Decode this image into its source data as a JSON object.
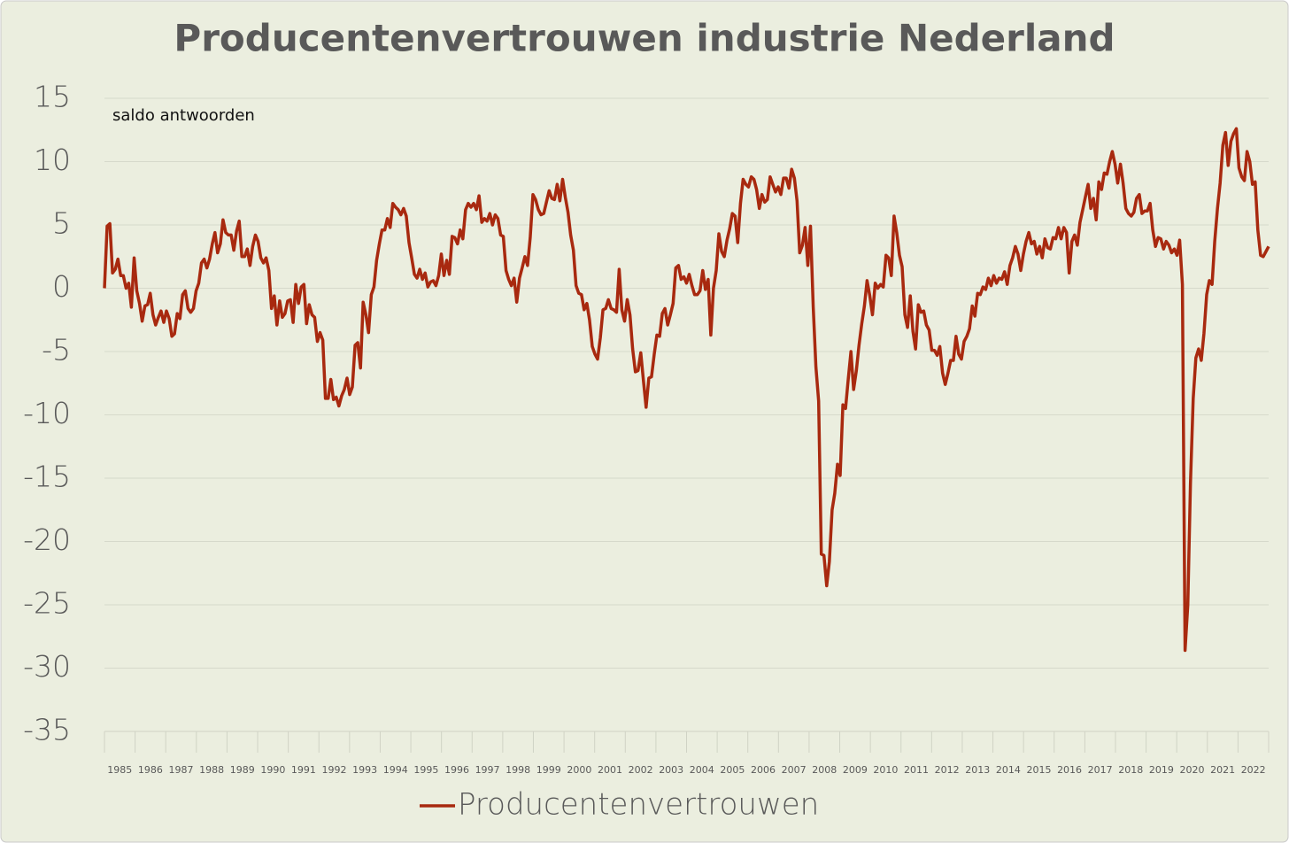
{
  "chart_data": {
    "type": "line",
    "title": "Producentenvertrouwen industrie Nederland",
    "annotation": "saldo antwoorden",
    "xlim": [
      1985,
      2023
    ],
    "xticks": [
      1985,
      1986,
      1987,
      1988,
      1989,
      1990,
      1991,
      1992,
      1993,
      1994,
      1995,
      1996,
      1997,
      1998,
      1999,
      2000,
      2001,
      2002,
      2003,
      2004,
      2005,
      2006,
      2007,
      2008,
      2009,
      2010,
      2011,
      2012,
      2013,
      2014,
      2015,
      2016,
      2017,
      2018,
      2019,
      2020,
      2021,
      2022
    ],
    "ylim": [
      -35,
      15
    ],
    "yticks": [
      -35,
      -30,
      -25,
      -20,
      -15,
      -10,
      -5,
      0,
      5,
      10,
      15
    ],
    "grid": true,
    "legend": "bottom",
    "series": [
      {
        "name": "Producentenvertrouwen",
        "color": "#a8290f",
        "values": [
          0,
          4.9,
          5.1,
          1.2,
          1.5,
          2.3,
          1.0,
          1.0,
          0,
          0.4,
          -1.5,
          2.4,
          -0.2,
          -1.2,
          -2.6,
          -1.4,
          -1.3,
          -0.4,
          -2.1,
          -2.9,
          -2.3,
          -1.8,
          -2.7,
          -1.8,
          -2.4,
          -3.8,
          -3.6,
          -2.0,
          -2.4,
          -0.5,
          -0.2,
          -1.6,
          -1.9,
          -1.6,
          -0.2,
          0.4,
          2.0,
          2.3,
          1.6,
          2.3,
          3.5,
          4.4,
          2.8,
          3.5,
          5.4,
          4.4,
          4.2,
          4.2,
          3.0,
          4.5,
          5.3,
          2.5,
          2.5,
          3.1,
          1.8,
          3.3,
          4.2,
          3.7,
          2.4,
          2.0,
          2.4,
          1.4,
          -1.6,
          -0.6,
          -2.9,
          -1.0,
          -2.3,
          -2.0,
          -1.0,
          -0.9,
          -2.7,
          0.3,
          -1.2,
          0.1,
          0.3,
          -2.8,
          -1.3,
          -2.1,
          -2.3,
          -4.2,
          -3.5,
          -4.1,
          -8.7,
          -8.7,
          -7.2,
          -8.8,
          -8.6,
          -9.3,
          -8.5,
          -8.0,
          -7.1,
          -8.4,
          -7.8,
          -4.5,
          -4.3,
          -6.3,
          -1.1,
          -2.1,
          -3.5,
          -0.5,
          0.1,
          2.2,
          3.5,
          4.6,
          4.6,
          5.5,
          4.8,
          6.7,
          6.4,
          6.2,
          5.8,
          6.3,
          5.7,
          3.6,
          2.4,
          1.1,
          0.8,
          1.5,
          0.7,
          1.2,
          0.1,
          0.5,
          0.6,
          0.2,
          1.0,
          2.7,
          1.0,
          2.2,
          1.1,
          4.1,
          4.0,
          3.5,
          4.6,
          3.9,
          6.2,
          6.7,
          6.4,
          6.7,
          6.2,
          7.3,
          5.2,
          5.5,
          5.3,
          5.9,
          5.0,
          5.8,
          5.5,
          4.2,
          4.1,
          1.4,
          0.7,
          0.2,
          0.8,
          -1.1,
          0.8,
          1.6,
          2.5,
          1.8,
          4.0,
          7.4,
          7.0,
          6.2,
          5.8,
          5.9,
          6.8,
          7.7,
          7.1,
          7.0,
          8.2,
          6.9,
          8.6,
          7.2,
          6.0,
          4.2,
          3.0,
          0.2,
          -0.4,
          -0.5,
          -1.7,
          -1.2,
          -2.5,
          -4.6,
          -5.2,
          -5.6,
          -3.9,
          -1.7,
          -1.6,
          -0.9,
          -1.6,
          -1.7,
          -1.9,
          1.5,
          -1.7,
          -2.6,
          -0.9,
          -2.1,
          -4.8,
          -6.6,
          -6.5,
          -5.1,
          -7.3,
          -9.4,
          -7.1,
          -7.0,
          -5.2,
          -3.7,
          -3.8,
          -2.0,
          -1.6,
          -2.9,
          -2.1,
          -1.2,
          1.6,
          1.8,
          0.7,
          0.9,
          0.4,
          1.1,
          0.2,
          -0.5,
          -0.5,
          -0.2,
          1.4,
          -0.1,
          0.7,
          -3.7,
          0.0,
          1.4,
          4.3,
          2.9,
          2.5,
          3.8,
          4.7,
          5.9,
          5.7,
          3.6,
          6.7,
          8.6,
          8.2,
          8.0,
          8.8,
          8.6,
          7.8,
          6.3,
          7.4,
          6.8,
          7.0,
          8.8,
          8.2,
          7.6,
          8.0,
          7.4,
          8.7,
          8.7,
          7.9,
          9.4,
          8.7,
          6.9,
          2.8,
          3.4,
          4.8,
          1.8,
          4.9,
          -1.5,
          -6.2,
          -8.9,
          -21.0,
          -21.1,
          -23.5,
          -21.6,
          -17.5,
          -16.2,
          -13.9,
          -14.8,
          -9.2,
          -9.5,
          -7.2,
          -5.0,
          -8.0,
          -6.5,
          -4.5,
          -2.8,
          -1.4,
          0.6,
          -0.6,
          -2.1,
          0.4,
          0.0,
          0.3,
          0.1,
          2.6,
          2.4,
          1.0,
          5.7,
          4.4,
          2.6,
          1.7,
          -2.1,
          -3.1,
          -0.6,
          -3.4,
          -4.8,
          -1.3,
          -1.9,
          -1.8,
          -2.9,
          -3.3,
          -4.9,
          -4.9,
          -5.3,
          -4.6,
          -6.7,
          -7.6,
          -6.7,
          -5.7,
          -5.7,
          -3.8,
          -5.2,
          -5.6,
          -4.2,
          -3.8,
          -3.2,
          -1.4,
          -2.2,
          -0.4,
          -0.5,
          0.1,
          -0.1,
          0.8,
          0.2,
          1.0,
          0.4,
          0.8,
          0.7,
          1.3,
          0.3,
          1.8,
          2.4,
          3.3,
          2.7,
          1.4,
          2.7,
          3.7,
          4.4,
          3.5,
          3.7,
          2.7,
          3.3,
          2.4,
          3.9,
          3.2,
          3.1,
          4.0,
          3.9,
          4.8,
          3.9,
          4.8,
          4.4,
          1.2,
          3.7,
          4.2,
          3.4,
          5.2,
          6.2,
          7.2,
          8.2,
          6.3,
          7.1,
          5.4,
          8.4,
          7.8,
          9.1,
          9.0,
          10.0,
          10.8,
          9.8,
          8.3,
          9.8,
          8.3,
          6.3,
          5.9,
          5.7,
          6.0,
          7.1,
          7.4,
          5.9,
          6.1,
          6.1,
          6.7,
          4.6,
          3.3,
          4.0,
          3.9,
          3.1,
          3.7,
          3.4,
          2.8,
          3.1,
          2.6,
          3.8,
          0.3,
          -28.6,
          -25.0,
          -15.4,
          -8.7,
          -5.5,
          -4.8,
          -5.7,
          -3.6,
          -0.5,
          0.6,
          0.3,
          3.7,
          6.3,
          8.3,
          11.3,
          12.3,
          9.7,
          11.6,
          12.2,
          12.6,
          9.5,
          8.8,
          8.5,
          10.8,
          10.0,
          8.2,
          8.4,
          4.6,
          2.6,
          2.5,
          2.9,
          3.3
        ]
      }
    ]
  }
}
